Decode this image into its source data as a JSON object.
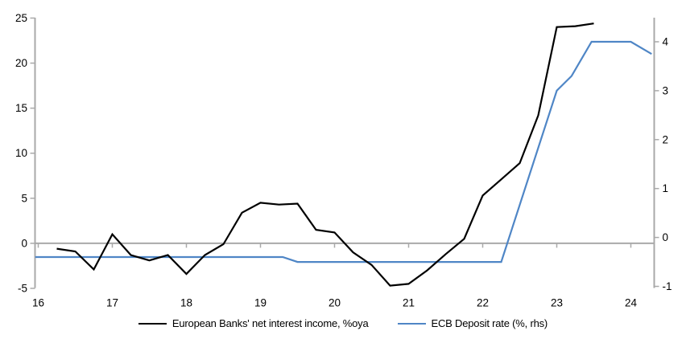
{
  "figure": {
    "background": "#ffffff"
  },
  "legend": {
    "items": [
      {
        "label": "European Banks' net interest income, %oya",
        "color": "#000000"
      },
      {
        "label": "ECB Deposit rate (%, rhs)",
        "color": "#4f86c6"
      }
    ]
  },
  "colors": {
    "axis_gray": "#a9a9a9",
    "series_black": "#000000",
    "series_blue": "#4f86c6"
  },
  "chart_data": {
    "type": "line",
    "title": "",
    "xlabel": "",
    "ylabel_left": "",
    "ylabel_right": "",
    "grid": false,
    "zero_line": true,
    "legend_position": "bottom",
    "x_axis": {
      "tick_values": [
        16,
        17,
        18,
        19,
        20,
        21,
        22,
        23,
        24
      ],
      "tick_labels": [
        "16",
        "17",
        "18",
        "19",
        "20",
        "21",
        "22",
        "23",
        "24"
      ],
      "range": [
        15.95,
        24.32
      ]
    },
    "left_axis": {
      "tick_values": [
        25,
        20,
        15,
        10,
        5,
        0,
        -5
      ],
      "tick_labels": [
        "25",
        "20",
        "15",
        "10",
        "5",
        "0",
        "-5"
      ],
      "range": [
        -5,
        25
      ]
    },
    "right_axis": {
      "tick_values": [
        4,
        3,
        2,
        1,
        0,
        -1
      ],
      "tick_labels": [
        "4",
        "3",
        "2",
        "1",
        "0",
        "-1"
      ],
      "range": [
        -1,
        4.5
      ]
    },
    "series": [
      {
        "name": "ECB Deposit rate (%, rhs)",
        "axis": "right",
        "color": "#4f86c6",
        "points": [
          [
            15.96,
            -0.4
          ],
          [
            19.3,
            -0.4
          ],
          [
            19.5,
            -0.5
          ],
          [
            22.25,
            -0.5
          ],
          [
            23.0,
            3.0
          ],
          [
            23.2,
            3.3
          ],
          [
            23.47,
            4.0
          ],
          [
            24.0,
            4.0
          ],
          [
            24.28,
            3.75
          ]
        ]
      },
      {
        "name": "European Banks' net interest income, %oya",
        "axis": "left",
        "color": "#000000",
        "points": [
          [
            16.25,
            -0.6
          ],
          [
            16.5,
            -0.9
          ],
          [
            16.75,
            -2.9
          ],
          [
            17.0,
            1.0
          ],
          [
            17.25,
            -1.3
          ],
          [
            17.5,
            -1.9
          ],
          [
            17.75,
            -1.3
          ],
          [
            18.0,
            -3.4
          ],
          [
            18.25,
            -1.3
          ],
          [
            18.5,
            -0.1
          ],
          [
            18.75,
            3.4
          ],
          [
            19.0,
            4.5
          ],
          [
            19.25,
            4.3
          ],
          [
            19.5,
            4.4
          ],
          [
            19.75,
            1.5
          ],
          [
            20.0,
            1.2
          ],
          [
            20.25,
            -1.0
          ],
          [
            20.5,
            -2.4
          ],
          [
            20.75,
            -4.7
          ],
          [
            21.0,
            -4.5
          ],
          [
            21.25,
            -3.0
          ],
          [
            21.5,
            -1.2
          ],
          [
            21.75,
            0.5
          ],
          [
            22.0,
            5.3
          ],
          [
            22.25,
            7.1
          ],
          [
            22.5,
            8.9
          ],
          [
            22.75,
            14.2
          ],
          [
            23.0,
            24.0
          ],
          [
            23.25,
            24.1
          ],
          [
            23.5,
            24.4
          ]
        ]
      }
    ]
  }
}
